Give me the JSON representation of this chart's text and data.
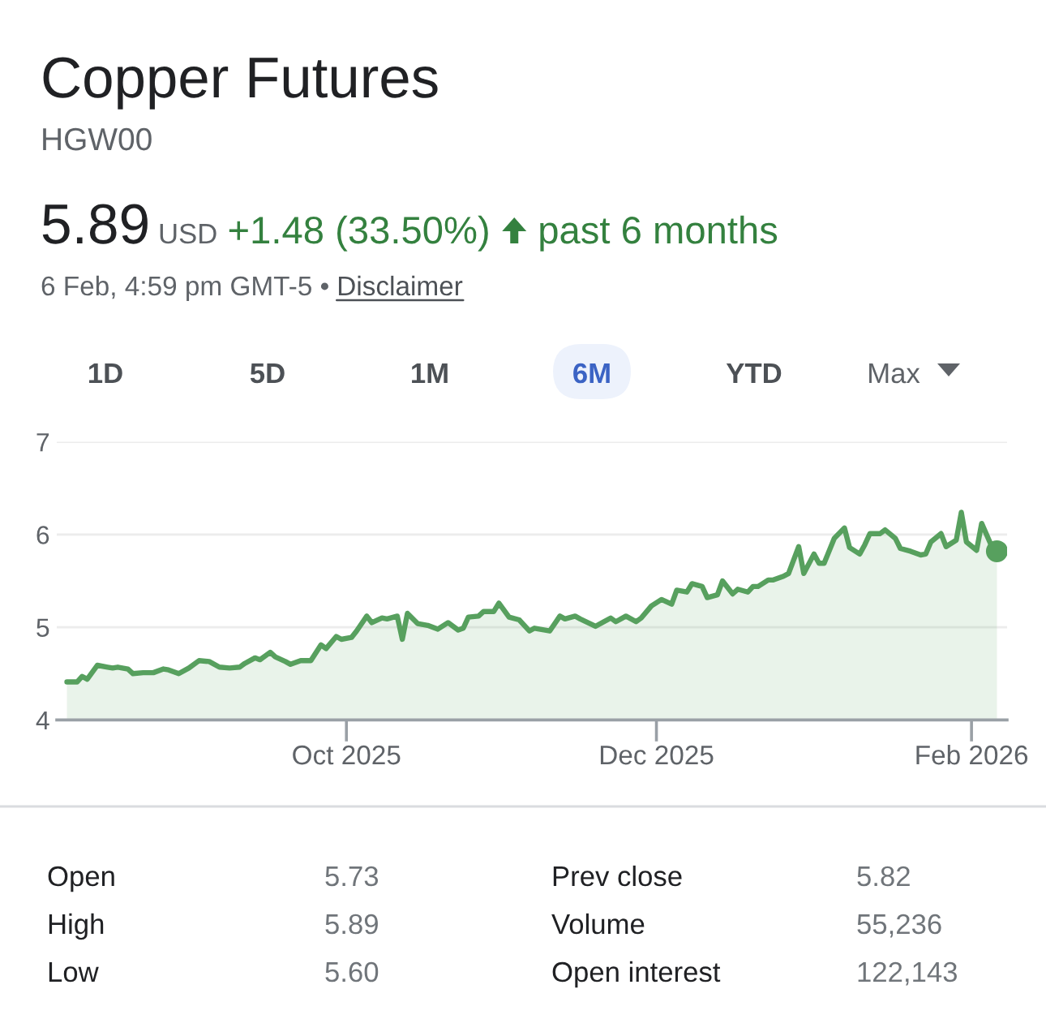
{
  "chart_data": {
    "type": "area",
    "title": "Copper Futures",
    "subtitle": "HGW00",
    "annotations": [
      "5.89",
      "USD",
      "+1.48 (33.50%)",
      "past 6 months",
      "6 Feb, 4:59 pm GMT-5 •",
      "Disclaimer",
      "1D",
      "5D",
      "1M",
      "6M",
      "YTD",
      "Max",
      "Open",
      "5.73",
      "Prev close",
      "5.82",
      "High",
      "5.89",
      "Volume",
      "55,236",
      "Low",
      "5.60",
      "Open interest",
      "122,143"
    ],
    "series": [
      {
        "color": "#57a05e",
        "x": [
          "2025-08-07",
          "2025-08-09",
          "2025-08-10",
          "2025-08-11",
          "2025-08-13",
          "2025-08-15",
          "2025-08-16",
          "2025-08-17",
          "2025-08-19",
          "2025-08-20",
          "2025-08-22",
          "2025-08-24",
          "2025-08-26",
          "2025-08-27",
          "2025-08-29",
          "2025-08-31",
          "2025-09-02",
          "2025-09-04",
          "2025-09-06",
          "2025-09-08",
          "2025-09-10",
          "2025-09-11",
          "2025-09-13",
          "2025-09-14",
          "2025-09-16",
          "2025-09-17",
          "2025-09-19",
          "2025-09-20",
          "2025-09-22",
          "2025-09-24",
          "2025-09-26",
          "2025-09-27",
          "2025-09-29",
          "2025-09-30",
          "2025-10-02",
          "2025-10-03",
          "2025-10-05",
          "2025-10-06",
          "2025-10-08",
          "2025-10-09",
          "2025-10-11",
          "2025-10-12",
          "2025-10-13",
          "2025-10-15",
          "2025-10-17",
          "2025-10-19",
          "2025-10-21",
          "2025-10-23",
          "2025-10-24",
          "2025-10-25",
          "2025-10-27",
          "2025-10-28",
          "2025-10-30",
          "2025-10-31",
          "2025-11-02",
          "2025-11-04",
          "2025-11-06",
          "2025-11-07",
          "2025-11-10",
          "2025-11-12",
          "2025-11-13",
          "2025-11-15",
          "2025-11-16",
          "2025-11-19",
          "2025-11-22",
          "2025-11-23",
          "2025-11-25",
          "2025-11-27",
          "2025-11-28",
          "2025-11-30",
          "2025-12-02",
          "2025-12-04",
          "2025-12-05",
          "2025-12-07",
          "2025-12-08",
          "2025-12-10",
          "2025-12-11",
          "2025-12-13",
          "2025-12-14",
          "2025-12-16",
          "2025-12-17",
          "2025-12-19",
          "2025-12-20",
          "2025-12-21",
          "2025-12-23",
          "2025-12-24",
          "2025-12-26",
          "2025-12-27",
          "2025-12-29",
          "2025-12-30",
          "2026-01-01",
          "2026-01-02",
          "2026-01-03",
          "2026-01-05",
          "2026-01-07",
          "2026-01-08",
          "2026-01-10",
          "2026-01-11",
          "2026-01-12",
          "2026-01-14",
          "2026-01-15",
          "2026-01-17",
          "2026-01-18",
          "2026-01-20",
          "2026-01-22",
          "2026-01-23",
          "2026-01-24",
          "2026-01-26",
          "2026-01-27",
          "2026-01-29",
          "2026-01-30",
          "2026-01-31",
          "2026-02-02",
          "2026-02-03",
          "2026-02-05",
          "2026-02-06"
        ],
        "values": [
          4.41,
          4.41,
          4.47,
          4.44,
          4.59,
          4.57,
          4.56,
          4.57,
          4.55,
          4.5,
          4.51,
          4.51,
          4.55,
          4.54,
          4.5,
          4.56,
          4.64,
          4.63,
          4.57,
          4.56,
          4.57,
          4.61,
          4.67,
          4.65,
          4.73,
          4.68,
          4.63,
          4.6,
          4.64,
          4.64,
          4.81,
          4.77,
          4.9,
          4.87,
          4.89,
          4.96,
          5.12,
          5.05,
          5.1,
          5.09,
          5.12,
          4.87,
          5.15,
          5.04,
          5.02,
          4.98,
          5.05,
          4.97,
          4.99,
          5.11,
          5.12,
          5.17,
          5.17,
          5.26,
          5.11,
          5.08,
          4.96,
          4.99,
          4.96,
          5.12,
          5.09,
          5.12,
          5.09,
          5.01,
          5.1,
          5.06,
          5.12,
          5.06,
          5.1,
          5.23,
          5.3,
          5.25,
          5.4,
          5.38,
          5.47,
          5.44,
          5.32,
          5.35,
          5.5,
          5.36,
          5.41,
          5.38,
          5.44,
          5.44,
          5.51,
          5.51,
          5.55,
          5.58,
          5.87,
          5.58,
          5.79,
          5.69,
          5.69,
          5.96,
          6.07,
          5.86,
          5.79,
          5.89,
          6.01,
          6.01,
          6.05,
          5.96,
          5.85,
          5.82,
          5.78,
          5.79,
          5.92,
          6.01,
          5.87,
          5.94,
          6.24,
          5.92,
          5.83,
          6.12,
          5.87,
          5.82
        ]
      },
      {
        "type": "scatter",
        "color": "#57a05e",
        "x": [
          "2026-02-06"
        ],
        "values": [
          5.82
        ]
      }
    ],
    "xlim": [
      "2025-08-05",
      "2026-02-08"
    ],
    "xticks": [
      {
        "value": "2025-10-01",
        "label": "Oct 2025"
      },
      {
        "value": "2025-12-01",
        "label": "Dec 2025"
      },
      {
        "value": "2026-02-01",
        "label": "Feb 2026"
      }
    ],
    "ylim": [
      4,
      7
    ],
    "yticks": [
      4,
      5,
      6,
      7
    ],
    "grid": "y"
  }
}
